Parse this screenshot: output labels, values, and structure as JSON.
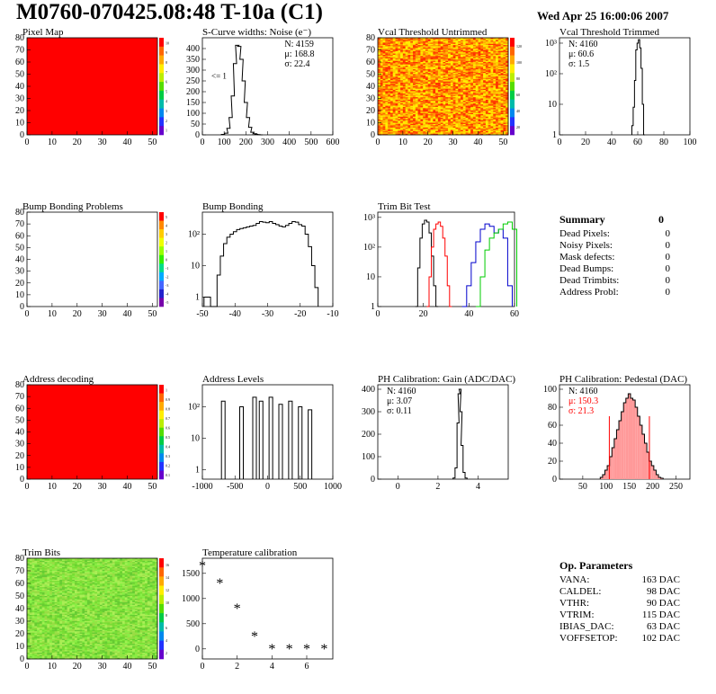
{
  "header": {
    "title": "M0760-070425.08:48 T-10a (C1)",
    "date": "Wed Apr 25 16:00:06 2007"
  },
  "colors": {
    "hist_line": "#000000",
    "pixel_map": "#ff0000",
    "trim_series": [
      "#000000",
      "#ff0000",
      "#0000cc",
      "#00cc00"
    ],
    "pedestal_fill": "#ff9999",
    "pedestal_fit": "#ff0000"
  },
  "chart_data": [
    {
      "id": "pixel-map",
      "type": "heatmap",
      "title": "Pixel Map",
      "xlim": [
        0,
        52
      ],
      "ylim": [
        0,
        80
      ],
      "x_ticks": [
        0,
        10,
        20,
        30,
        40,
        50
      ],
      "y_ticks": [
        0,
        10,
        20,
        30,
        40,
        50,
        60,
        70,
        80
      ],
      "fill": "uniform",
      "color": "#ff0000",
      "palette_ticks": [
        "10",
        "9",
        "8",
        "7",
        "6",
        "5",
        "4",
        "3",
        "2",
        "1"
      ]
    },
    {
      "id": "s-curve-noise",
      "type": "histogram",
      "title": "S-Curve widths: Noise (e⁻)",
      "xlim": [
        0,
        600
      ],
      "ylim": [
        0,
        450
      ],
      "x_ticks": [
        0,
        100,
        200,
        300,
        400,
        500,
        600
      ],
      "y_ticks": [
        0,
        50,
        100,
        150,
        200,
        250,
        300,
        350,
        400
      ],
      "stats": [
        {
          "label": "N:",
          "value": "4159"
        },
        {
          "label": "μ:",
          "value": "168.8"
        },
        {
          "label": "σ:",
          "value": "22.4"
        }
      ],
      "annotation": "<= 1",
      "x": [
        95,
        110,
        120,
        130,
        140,
        150,
        160,
        170,
        180,
        190,
        200,
        210,
        220,
        230,
        240,
        250,
        260,
        270
      ],
      "values": [
        2,
        8,
        30,
        80,
        180,
        330,
        415,
        410,
        350,
        250,
        150,
        80,
        35,
        12,
        5,
        2,
        1,
        0
      ]
    },
    {
      "id": "vcal-untrimmed",
      "type": "heatmap",
      "title": "Vcal Threshold Untrimmed",
      "xlim": [
        0,
        52
      ],
      "ylim": [
        0,
        80
      ],
      "x_ticks": [
        0,
        10,
        20,
        30,
        40,
        50
      ],
      "y_ticks": [
        0,
        10,
        20,
        30,
        40,
        50,
        60,
        70,
        80
      ],
      "fill": "noise",
      "colors": [
        "#ff3300",
        "#ff6600",
        "#ff9900",
        "#ffcc00",
        "#ffee00"
      ],
      "palette_ticks": [
        "120",
        "100",
        "80",
        "60",
        "40",
        "20"
      ]
    },
    {
      "id": "vcal-trimmed",
      "type": "histogram",
      "title": "Vcal Threshold Trimmed",
      "log_y": true,
      "xlim": [
        0,
        100
      ],
      "ylim": [
        1,
        1500
      ],
      "x_ticks": [
        0,
        20,
        40,
        60,
        80,
        100
      ],
      "y_ticks": [
        "1",
        "10",
        "10²",
        "10³"
      ],
      "stats": [
        {
          "label": "N:",
          "value": "4160"
        },
        {
          "label": "μ:",
          "value": "60.6"
        },
        {
          "label": "σ:",
          "value": "1.5"
        }
      ],
      "x": [
        56,
        57,
        58,
        59,
        60,
        61,
        62,
        63,
        64,
        65
      ],
      "values": [
        2,
        8,
        60,
        600,
        1000,
        1300,
        700,
        150,
        10,
        1
      ]
    },
    {
      "id": "bump-bonding-problems",
      "type": "heatmap",
      "title": "Bump Bonding Problems",
      "xlim": [
        0,
        52
      ],
      "ylim": [
        0,
        80
      ],
      "x_ticks": [
        0,
        10,
        20,
        30,
        40,
        50
      ],
      "y_ticks": [
        0,
        10,
        20,
        30,
        40,
        50,
        60,
        70,
        80
      ],
      "fill": "empty",
      "palette_ticks": [
        "5",
        "4",
        "3",
        "2",
        "1",
        "0",
        "-1",
        "-2",
        "-3",
        "-4",
        "-5"
      ]
    },
    {
      "id": "bump-bonding",
      "type": "histogram",
      "title": "Bump Bonding",
      "log_y": true,
      "xlim": [
        -50,
        -10
      ],
      "ylim": [
        0.5,
        500
      ],
      "x_ticks": [
        -50,
        -40,
        -30,
        -20,
        -10
      ],
      "y_ticks": [
        "1",
        "10",
        "10²"
      ],
      "x": [
        -49,
        -48,
        -47,
        -46,
        -45,
        -44,
        -43,
        -42,
        -41,
        -40,
        -39,
        -38,
        -37,
        -36,
        -35,
        -34,
        -33,
        -32,
        -31,
        -30,
        -29,
        -28,
        -27,
        -26,
        -25,
        -24,
        -23,
        -22,
        -21,
        -20,
        -19,
        -18,
        -17,
        -16,
        -15
      ],
      "values": [
        1,
        1,
        0,
        0,
        5,
        20,
        50,
        80,
        100,
        120,
        140,
        150,
        160,
        170,
        180,
        190,
        220,
        250,
        240,
        230,
        250,
        220,
        200,
        180,
        170,
        190,
        220,
        250,
        240,
        200,
        180,
        100,
        40,
        10,
        2
      ]
    },
    {
      "id": "trim-bit-test",
      "type": "line",
      "title": "Trim Bit Test",
      "log_y": true,
      "xlim": [
        0,
        60
      ],
      "ylim": [
        1,
        1500
      ],
      "x_ticks": [
        0,
        20,
        40,
        60
      ],
      "y_ticks": [
        "1",
        "10",
        "10²",
        "10³"
      ],
      "series": [
        {
          "x": [
            17,
            18,
            19,
            20,
            21,
            22,
            23,
            24,
            25,
            26
          ],
          "values": [
            1,
            20,
            200,
            600,
            800,
            700,
            300,
            50,
            5,
            1
          ]
        },
        {
          "x": [
            22,
            23,
            24,
            25,
            26,
            27,
            28,
            29,
            30,
            31,
            32
          ],
          "values": [
            1,
            10,
            100,
            400,
            600,
            700,
            500,
            200,
            50,
            5,
            1
          ]
        },
        {
          "x": [
            38,
            40,
            42,
            44,
            46,
            48,
            50,
            52,
            54,
            56,
            58
          ],
          "values": [
            1,
            5,
            30,
            150,
            400,
            600,
            500,
            300,
            400,
            200,
            5
          ]
        },
        {
          "x": [
            44,
            46,
            48,
            50,
            52,
            54,
            56,
            58,
            60
          ],
          "values": [
            1,
            10,
            80,
            200,
            300,
            400,
            600,
            700,
            400
          ]
        }
      ]
    },
    {
      "id": "address-decoding",
      "type": "heatmap",
      "title": "Address decoding",
      "xlim": [
        0,
        52
      ],
      "ylim": [
        0,
        80
      ],
      "x_ticks": [
        0,
        10,
        20,
        30,
        40,
        50
      ],
      "y_ticks": [
        0,
        10,
        20,
        30,
        40,
        50,
        60,
        70,
        80
      ],
      "fill": "uniform",
      "color": "#ff0000",
      "palette_ticks": [
        "1",
        "0.9",
        "0.8",
        "0.7",
        "0.6",
        "0.5",
        "0.4",
        "0.3",
        "0.2",
        "0.1"
      ]
    },
    {
      "id": "address-levels",
      "type": "histogram",
      "title": "Address Levels",
      "log_y": true,
      "xlim": [
        -1000,
        1000
      ],
      "ylim": [
        0.5,
        500
      ],
      "x_ticks": [
        -1000,
        -500,
        0,
        500,
        1000
      ],
      "y_ticks": [
        "1",
        "10",
        "10²"
      ],
      "spikes": [
        {
          "x": -680,
          "value": 150
        },
        {
          "x": -400,
          "value": 100
        },
        {
          "x": -200,
          "value": 200
        },
        {
          "x": -100,
          "value": 150
        },
        {
          "x": 50,
          "value": 200
        },
        {
          "x": 200,
          "value": 120
        },
        {
          "x": 350,
          "value": 150
        },
        {
          "x": 500,
          "value": 100
        },
        {
          "x": 650,
          "value": 80
        }
      ]
    },
    {
      "id": "ph-gain",
      "type": "histogram",
      "title": "PH Calibration: Gain (ADC/DAC)",
      "xlim": [
        -1,
        5.5
      ],
      "ylim": [
        0,
        420
      ],
      "x_ticks": [
        0,
        2,
        4
      ],
      "y_ticks": [
        0,
        100,
        200,
        300,
        400
      ],
      "stats": [
        {
          "label": "N:",
          "value": "4160"
        },
        {
          "label": "μ:",
          "value": "3.07"
        },
        {
          "label": "σ:",
          "value": "0.11"
        }
      ],
      "x": [
        2.8,
        2.9,
        3.0,
        3.05,
        3.1,
        3.15,
        3.2,
        3.3,
        3.4
      ],
      "values": [
        5,
        50,
        250,
        380,
        400,
        300,
        150,
        30,
        5
      ]
    },
    {
      "id": "ph-pedestal",
      "type": "histogram",
      "title": "PH Calibration: Pedestal (DAC)",
      "xlim": [
        0,
        280
      ],
      "ylim": [
        0,
        105
      ],
      "x_ticks": [
        50,
        100,
        150,
        200,
        250
      ],
      "y_ticks": [
        0,
        20,
        40,
        60,
        80,
        100
      ],
      "stats": [
        {
          "label": "N:",
          "value": "4160"
        },
        {
          "label": "μ:",
          "value": "150.3",
          "color": "#ff0000"
        },
        {
          "label": "σ:",
          "value": "21.3",
          "color": "#ff0000"
        }
      ],
      "fit_lines": [
        107,
        193
      ],
      "x": [
        90,
        95,
        100,
        105,
        110,
        115,
        120,
        125,
        130,
        135,
        140,
        145,
        150,
        155,
        160,
        165,
        170,
        175,
        180,
        185,
        190,
        195,
        200,
        205,
        210,
        215,
        220
      ],
      "values": [
        2,
        5,
        10,
        15,
        25,
        35,
        45,
        55,
        65,
        75,
        85,
        90,
        95,
        90,
        88,
        80,
        70,
        60,
        50,
        40,
        30,
        20,
        15,
        10,
        5,
        2,
        1
      ]
    },
    {
      "id": "trim-bits",
      "type": "heatmap",
      "title": "Trim Bits",
      "xlim": [
        0,
        52
      ],
      "ylim": [
        0,
        80
      ],
      "x_ticks": [
        0,
        10,
        20,
        30,
        40,
        50
      ],
      "y_ticks": [
        0,
        10,
        20,
        30,
        40,
        50,
        60,
        70,
        80
      ],
      "fill": "noise",
      "colors": [
        "#66cc33",
        "#77dd33",
        "#88ee44",
        "#99dd44",
        "#aaee55"
      ],
      "palette_ticks": [
        "16",
        "14",
        "12",
        "10",
        "8",
        "6",
        "4",
        "2"
      ]
    },
    {
      "id": "temperature-calibration",
      "type": "scatter",
      "title": "Temperature calibration",
      "xlim": [
        0,
        7.5
      ],
      "ylim": [
        -200,
        1800
      ],
      "x_ticks": [
        0,
        2,
        4,
        6
      ],
      "y_ticks": [
        0,
        500,
        1000,
        1500
      ],
      "x": [
        0,
        1,
        2,
        3,
        4,
        5,
        6,
        7
      ],
      "values": [
        1650,
        1300,
        800,
        250,
        0,
        0,
        0,
        0
      ]
    }
  ],
  "summary": {
    "title": "Summary",
    "total": "0",
    "items": [
      {
        "label": "Dead Pixels:",
        "value": "0"
      },
      {
        "label": "Noisy Pixels:",
        "value": "0"
      },
      {
        "label": "Mask defects:",
        "value": "0"
      },
      {
        "label": "Dead Bumps:",
        "value": "0"
      },
      {
        "label": "Dead Trimbits:",
        "value": "0"
      },
      {
        "label": "Address Probl:",
        "value": "0"
      }
    ]
  },
  "op_params": {
    "title": "Op. Parameters",
    "items": [
      {
        "label": "VANA:",
        "value": "163 DAC"
      },
      {
        "label": "CALDEL:",
        "value": "98 DAC"
      },
      {
        "label": "VTHR:",
        "value": "90 DAC"
      },
      {
        "label": "VTRIM:",
        "value": "115 DAC"
      },
      {
        "label": "IBIAS_DAC:",
        "value": "63 DAC"
      },
      {
        "label": "VOFFSETOP:",
        "value": "102 DAC"
      }
    ]
  }
}
